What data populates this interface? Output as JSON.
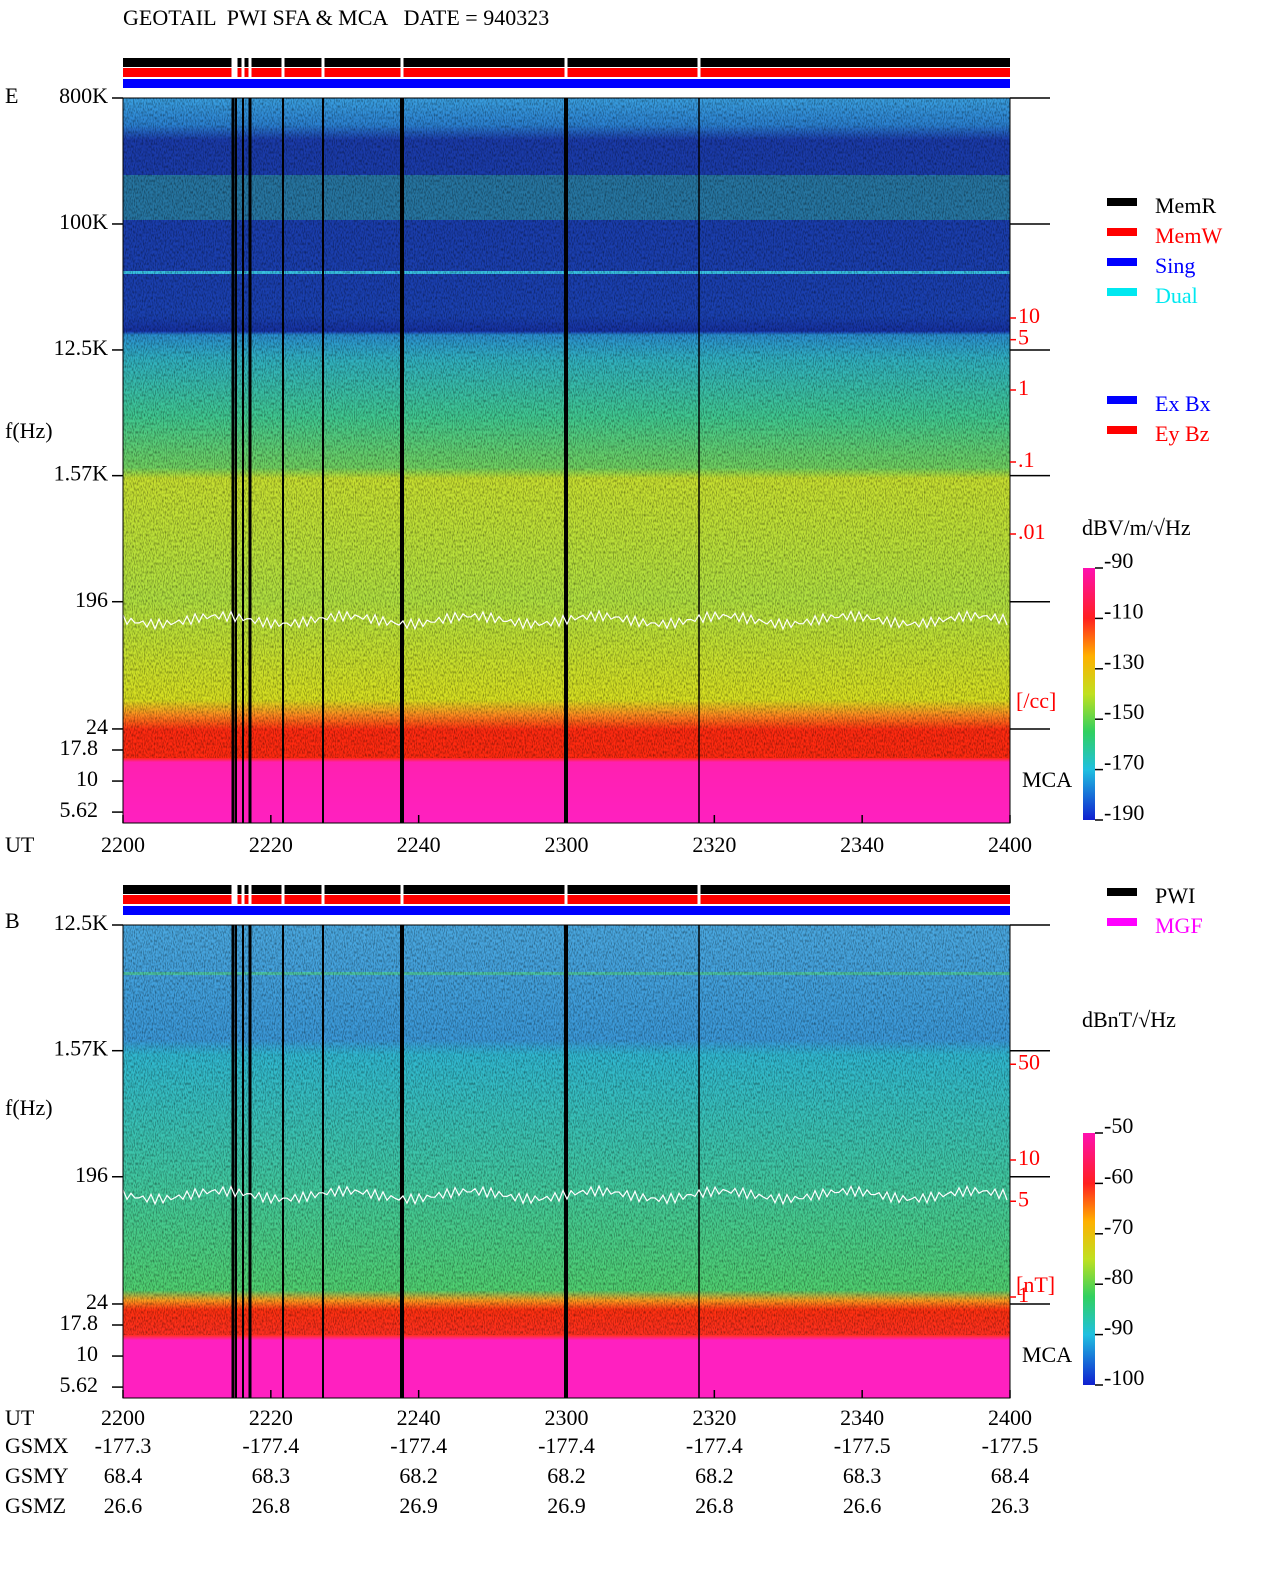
{
  "title": "GEOTAIL  PWI SFA & MCA   DATE = 940323",
  "chart_data": [
    {
      "type": "spectrogram",
      "panel": "E",
      "ylabel": "f(Hz)",
      "xlabel": "UT",
      "categories": [
        "2200",
        "2220",
        "2240",
        "2300",
        "2320",
        "2340",
        "2400"
      ],
      "log_y": true,
      "ylim": [
        24,
        800000
      ],
      "yticks": [
        {
          "value": 800000,
          "label": "800K"
        },
        {
          "value": 100000,
          "label": "100K"
        },
        {
          "value": 12500,
          "label": "12.5K"
        },
        {
          "value": 1570,
          "label": "1.57K"
        },
        196,
        24
      ],
      "mca_label": "MCA",
      "mca_ticks": [
        17.8,
        10,
        5.62
      ],
      "colorbar": {
        "unit": "dBV/m/√Hz",
        "clim": [
          -190,
          -90
        ],
        "ticks": [
          -90,
          -110,
          -130,
          -150,
          -170,
          -190
        ]
      },
      "density_scale": {
        "unit": "[/cc]",
        "ticks": [
          10,
          5,
          1,
          {
            "value": 0.1,
            "label": ".1"
          },
          {
            "value": 0.01,
            "label": ".01"
          }
        ]
      },
      "legend": [
        [
          {
            "name": "MemR",
            "color": "#000000"
          },
          {
            "name": "MemW",
            "color": "#ff0000"
          },
          {
            "name": "Sing",
            "color": "#0000ff"
          },
          {
            "name": "Dual",
            "color": "#00e8f0"
          }
        ],
        [
          {
            "name": "Ex Bx",
            "color": "#0000ff"
          },
          {
            "name": "Ey Bz",
            "color": "#ff0000"
          }
        ]
      ]
    },
    {
      "type": "spectrogram",
      "panel": "B",
      "ylabel": "f(Hz)",
      "xlabel": "UT",
      "categories": [
        "2200",
        "2220",
        "2240",
        "2300",
        "2320",
        "2340",
        "2400"
      ],
      "log_y": true,
      "ylim": [
        24,
        12500
      ],
      "yticks": [
        {
          "value": 12500,
          "label": "12.5K"
        },
        {
          "value": 1570,
          "label": "1.57K"
        },
        196,
        24
      ],
      "mca_label": "MCA",
      "mca_ticks": [
        17.8,
        10,
        5.62
      ],
      "colorbar": {
        "unit": "dBnT/√Hz",
        "clim": [
          -100,
          -50
        ],
        "ticks": [
          -50,
          -60,
          -70,
          -80,
          -90,
          -100
        ]
      },
      "density_scale": {
        "unit": "[nT]",
        "ticks": [
          50,
          10,
          5,
          1
        ]
      },
      "legend": [
        [
          {
            "name": "PWI",
            "color": "#000000"
          },
          {
            "name": "MGF",
            "color": "#ff00ff"
          }
        ]
      ]
    }
  ],
  "orbit": {
    "rows": [
      {
        "name": "GSMX",
        "values": [
          -177.3,
          -177.4,
          -177.4,
          -177.4,
          -177.4,
          -177.5,
          -177.5
        ]
      },
      {
        "name": "GSMY",
        "values": [
          68.4,
          68.3,
          68.2,
          68.2,
          68.2,
          68.3,
          68.4
        ]
      },
      {
        "name": "GSMZ",
        "values": [
          26.6,
          26.8,
          26.9,
          26.9,
          26.8,
          26.6,
          26.3
        ]
      }
    ]
  }
}
